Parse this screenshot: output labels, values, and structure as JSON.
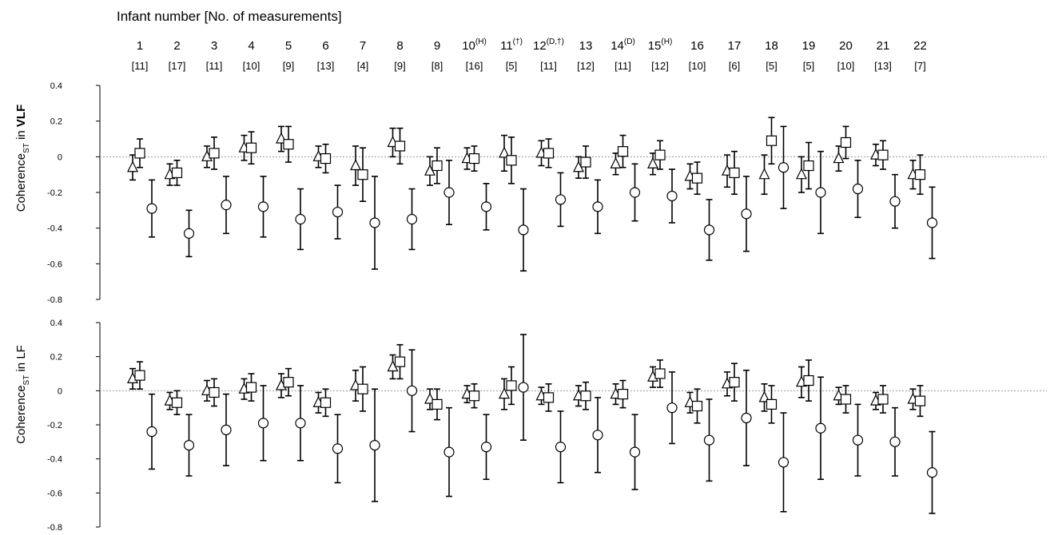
{
  "figure": {
    "header_title": "Infant number [No. of measurements]",
    "zero_line_color": "#999999",
    "marker_color": "#000000"
  },
  "infants": [
    {
      "num": "1",
      "sup": "",
      "n": "[11]"
    },
    {
      "num": "2",
      "sup": "",
      "n": "[17]"
    },
    {
      "num": "3",
      "sup": "",
      "n": "[11]"
    },
    {
      "num": "4",
      "sup": "",
      "n": "[10]"
    },
    {
      "num": "5",
      "sup": "",
      "n": "[9]"
    },
    {
      "num": "6",
      "sup": "",
      "n": "[13]"
    },
    {
      "num": "7",
      "sup": "",
      "n": "[4]"
    },
    {
      "num": "8",
      "sup": "",
      "n": "[9]"
    },
    {
      "num": "9",
      "sup": "",
      "n": "[8]"
    },
    {
      "num": "10",
      "sup": "(H)",
      "n": "[16]"
    },
    {
      "num": "11",
      "sup": "(†)",
      "n": "[5]"
    },
    {
      "num": "12",
      "sup": "(D,†)",
      "n": "[11]"
    },
    {
      "num": "13",
      "sup": "",
      "n": "[12]"
    },
    {
      "num": "14",
      "sup": "(D)",
      "n": "[11]"
    },
    {
      "num": "15",
      "sup": "(H)",
      "n": "[12]"
    },
    {
      "num": "16",
      "sup": "",
      "n": "[10]"
    },
    {
      "num": "17",
      "sup": "",
      "n": "[6]"
    },
    {
      "num": "18",
      "sup": "",
      "n": "[5]"
    },
    {
      "num": "19",
      "sup": "",
      "n": "[5]"
    },
    {
      "num": "20",
      "sup": "",
      "n": "[10]"
    },
    {
      "num": "21",
      "sup": "",
      "n": "[13]"
    },
    {
      "num": "22",
      "sup": "",
      "n": "[7]"
    }
  ],
  "panels": [
    {
      "ylabel_main": "Coherence",
      "ylabel_sub": "ST",
      "ylabel_in": " in ",
      "ylabel_band": "VLF"
    },
    {
      "ylabel_main": "Coherence",
      "ylabel_sub": "ST",
      "ylabel_in": " in ",
      "ylabel_band": "LF"
    }
  ],
  "chart_data": [
    {
      "type": "scatter",
      "ylabel": "CoherenceST in VLF",
      "ylim": [
        -0.8,
        0.4
      ],
      "yticks": [
        "0.4",
        "0.2",
        "0",
        "-0.2",
        "-0.4",
        "-0.6",
        "-0.8"
      ],
      "categories": [
        "1",
        "2",
        "3",
        "4",
        "5",
        "6",
        "7",
        "8",
        "9",
        "10",
        "11",
        "12",
        "13",
        "14",
        "15",
        "16",
        "17",
        "18",
        "19",
        "20",
        "21",
        "22"
      ],
      "series": [
        {
          "marker": "triangle",
          "values": [
            -0.06,
            -0.1,
            0.0,
            0.05,
            0.1,
            0.0,
            -0.05,
            0.08,
            -0.08,
            -0.01,
            0.02,
            0.02,
            -0.06,
            -0.04,
            -0.04,
            -0.11,
            -0.08,
            -0.1,
            -0.1,
            -0.01,
            0.01,
            -0.1
          ],
          "err": [
            0.07,
            0.06,
            0.06,
            0.07,
            0.07,
            0.06,
            0.11,
            0.08,
            0.08,
            0.06,
            0.1,
            0.07,
            0.06,
            0.06,
            0.06,
            0.07,
            0.09,
            0.11,
            0.1,
            0.07,
            0.06,
            0.08
          ]
        },
        {
          "marker": "square",
          "values": [
            0.02,
            -0.09,
            0.02,
            0.05,
            0.07,
            -0.01,
            -0.1,
            0.06,
            -0.05,
            -0.01,
            -0.02,
            0.02,
            -0.03,
            0.03,
            0.01,
            -0.12,
            -0.09,
            0.09,
            -0.05,
            0.08,
            0.01,
            -0.1
          ],
          "err": [
            0.08,
            0.07,
            0.09,
            0.09,
            0.1,
            0.08,
            0.15,
            0.1,
            0.1,
            0.07,
            0.13,
            0.08,
            0.09,
            0.09,
            0.08,
            0.09,
            0.12,
            0.13,
            0.13,
            0.09,
            0.08,
            0.11
          ]
        },
        {
          "marker": "circle",
          "values": [
            -0.29,
            -0.43,
            -0.27,
            -0.28,
            -0.35,
            -0.31,
            -0.37,
            -0.35,
            -0.2,
            -0.28,
            -0.41,
            -0.24,
            -0.28,
            -0.2,
            -0.22,
            -0.41,
            -0.32,
            -0.06,
            -0.2,
            -0.18,
            -0.25,
            -0.37
          ],
          "err": [
            0.16,
            0.13,
            0.16,
            0.17,
            0.17,
            0.15,
            0.26,
            0.17,
            0.18,
            0.13,
            0.23,
            0.15,
            0.15,
            0.16,
            0.15,
            0.17,
            0.21,
            0.23,
            0.23,
            0.16,
            0.15,
            0.2
          ]
        }
      ]
    },
    {
      "type": "scatter",
      "ylabel": "CoherenceST in LF",
      "ylim": [
        -0.8,
        0.4
      ],
      "yticks": [
        "0.4",
        "0.2",
        "0",
        "-0.2",
        "-0.4",
        "-0.6",
        "-0.8"
      ],
      "categories": [
        "1",
        "2",
        "3",
        "4",
        "5",
        "6",
        "7",
        "8",
        "9",
        "10",
        "11",
        "12",
        "13",
        "14",
        "15",
        "16",
        "17",
        "18",
        "19",
        "20",
        "21",
        "22"
      ],
      "series": [
        {
          "marker": "triangle",
          "values": [
            0.07,
            -0.06,
            0.0,
            0.01,
            0.03,
            -0.07,
            0.03,
            0.14,
            -0.05,
            -0.02,
            -0.02,
            -0.03,
            -0.03,
            -0.02,
            0.08,
            -0.07,
            0.04,
            -0.04,
            0.05,
            -0.03,
            -0.06,
            -0.05
          ],
          "err": [
            0.06,
            0.05,
            0.06,
            0.06,
            0.07,
            0.06,
            0.09,
            0.07,
            0.06,
            0.05,
            0.09,
            0.05,
            0.06,
            0.06,
            0.06,
            0.06,
            0.07,
            0.08,
            0.09,
            0.05,
            0.05,
            0.06
          ]
        },
        {
          "marker": "square",
          "values": [
            0.09,
            -0.07,
            -0.01,
            0.02,
            0.05,
            -0.07,
            0.01,
            0.17,
            -0.08,
            -0.03,
            0.03,
            -0.04,
            -0.03,
            -0.02,
            0.1,
            -0.09,
            0.05,
            -0.08,
            0.06,
            -0.05,
            -0.05,
            -0.06
          ],
          "err": [
            0.08,
            0.07,
            0.08,
            0.08,
            0.08,
            0.08,
            0.13,
            0.1,
            0.09,
            0.07,
            0.11,
            0.08,
            0.08,
            0.08,
            0.08,
            0.1,
            0.11,
            0.11,
            0.12,
            0.08,
            0.08,
            0.09
          ]
        },
        {
          "marker": "circle",
          "values": [
            -0.24,
            -0.32,
            -0.23,
            -0.19,
            -0.19,
            -0.34,
            -0.32,
            0.0,
            -0.36,
            -0.33,
            0.02,
            -0.33,
            -0.26,
            -0.36,
            -0.1,
            -0.29,
            -0.16,
            -0.42,
            -0.22,
            -0.29,
            -0.3,
            -0.48
          ],
          "err": [
            0.22,
            0.18,
            0.21,
            0.22,
            0.22,
            0.2,
            0.33,
            0.24,
            0.26,
            0.19,
            0.31,
            0.21,
            0.22,
            0.22,
            0.21,
            0.24,
            0.28,
            0.29,
            0.3,
            0.21,
            0.2,
            0.24
          ]
        }
      ]
    }
  ]
}
